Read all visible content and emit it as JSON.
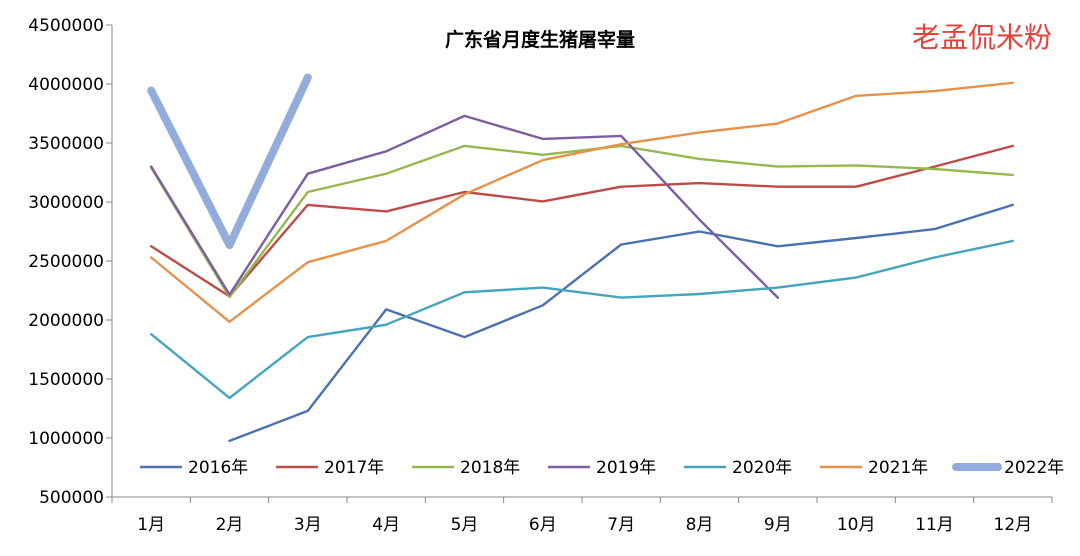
{
  "watermark": "老孟侃米粉",
  "chart_data": {
    "type": "line",
    "title": "广东省月度生猪屠宰量",
    "xlabel": "",
    "ylabel": "",
    "categories": [
      "1月",
      "2月",
      "3月",
      "4月",
      "5月",
      "6月",
      "7月",
      "8月",
      "9月",
      "10月",
      "11月",
      "12月"
    ],
    "ylim": [
      500000,
      4500000
    ],
    "yticks": [
      "500000",
      "1000000",
      "1500000",
      "2000000",
      "2500000",
      "3000000",
      "3500000",
      "4000000",
      "4500000"
    ],
    "grid": true,
    "legend_position": "bottom",
    "series": [
      {
        "name": "2016年",
        "color": "#4a72b0",
        "values": [
          null,
          975000,
          1230000,
          2090000,
          1855000,
          2125000,
          2640000,
          2750000,
          2625000,
          2695000,
          2770000,
          2975000
        ]
      },
      {
        "name": "2017年",
        "color": "#bf4b48",
        "values": [
          2625000,
          2200000,
          2975000,
          2920000,
          3085000,
          3005000,
          3130000,
          3160000,
          3130000,
          3130000,
          3300000,
          3475000
        ]
      },
      {
        "name": "2018年",
        "color": "#97b84f",
        "values": [
          3290000,
          2195000,
          3085000,
          3240000,
          3475000,
          3400000,
          3475000,
          3365000,
          3300000,
          3310000,
          3280000,
          3230000
        ]
      },
      {
        "name": "2019年",
        "color": "#7d5ea0",
        "values": [
          3300000,
          2215000,
          3240000,
          3430000,
          3730000,
          3535000,
          3560000,
          2850000,
          2190000,
          null,
          null,
          null
        ]
      },
      {
        "name": "2020年",
        "color": "#45a5bf",
        "values": [
          1880000,
          1340000,
          1855000,
          1960000,
          2235000,
          2275000,
          2190000,
          2220000,
          2275000,
          2360000,
          2530000,
          2670000
        ]
      },
      {
        "name": "2021年",
        "color": "#e6924a",
        "values": [
          2530000,
          1985000,
          2490000,
          2670000,
          3065000,
          3355000,
          3490000,
          3590000,
          3665000,
          3900000,
          3940000,
          4010000
        ]
      },
      {
        "name": "2022年",
        "color": "#92acdc",
        "values": [
          3945000,
          2635000,
          4055000,
          null,
          null,
          null,
          null,
          null,
          null,
          null,
          null,
          null
        ]
      }
    ]
  }
}
